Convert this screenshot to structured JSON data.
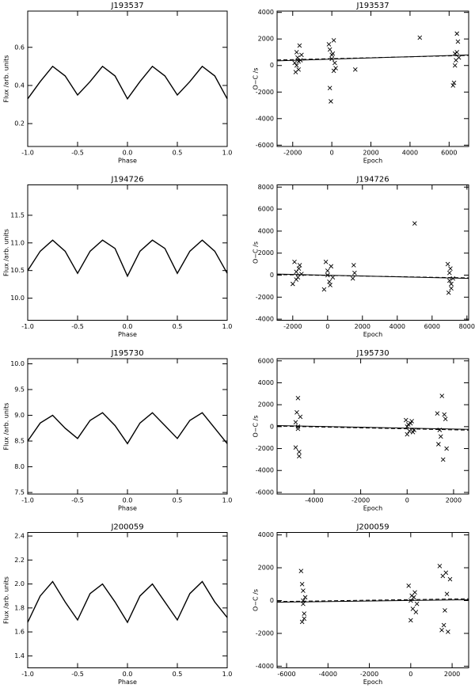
{
  "chart_data": [
    {
      "type": "line",
      "title": "J193537",
      "x_label": "Phase",
      "y_label": "Flux /arb. units",
      "x": [
        -1,
        -0.875,
        -0.75,
        -0.625,
        -0.5,
        -0.375,
        -0.25,
        -0.125,
        0,
        0.125,
        0.25,
        0.375,
        0.5,
        0.625,
        0.75,
        0.875,
        1
      ],
      "values": [
        0.33,
        0.42,
        0.5,
        0.45,
        0.35,
        0.42,
        0.5,
        0.45,
        0.33,
        0.42,
        0.5,
        0.45,
        0.35,
        0.42,
        0.5,
        0.45,
        0.33
      ],
      "xlim": [
        -1,
        1
      ],
      "ylim": [
        0.08,
        0.79
      ],
      "xticks": [
        {
          "value": -1,
          "label": "-1.0"
        },
        -0.5,
        {
          "value": 0,
          "label": "0.0"
        },
        0.5,
        {
          "value": 1,
          "label": "1.0"
        }
      ],
      "yticks": [
        0.2,
        0.4,
        0.6
      ],
      "color": "#000000"
    },
    {
      "type": "scatter",
      "title": "J193537",
      "x_label": "Epoch",
      "y_label": "O−C /s",
      "x": [
        -1900,
        -1850,
        -1800,
        -1750,
        -1700,
        -1650,
        -1600,
        -1550,
        -1800,
        -1700,
        -150,
        -100,
        -50,
        0,
        50,
        100,
        150,
        200,
        -100,
        100,
        0,
        1200,
        4500,
        6200,
        6250,
        6300,
        6350,
        6400,
        6450,
        6500,
        6300,
        6400
      ],
      "values": [
        200,
        -500,
        1000,
        600,
        -300,
        1500,
        400,
        800,
        0,
        300,
        1600,
        -1700,
        -2700,
        500,
        900,
        1900,
        200,
        -200,
        1200,
        -400,
        800,
        -300,
        2100,
        -1500,
        -1300,
        900,
        400,
        2400,
        1800,
        600,
        0,
        1000
      ],
      "fits": [
        {
          "x": [
            -2800,
            7000
          ],
          "values": [
            350,
            800
          ],
          "dashed": false
        },
        {
          "x": [
            -2800,
            7000
          ],
          "values": [
            420,
            760
          ],
          "dashed": true
        }
      ],
      "xlim": [
        -2800,
        7000
      ],
      "ylim": [
        -6100,
        4100
      ],
      "xticks": [
        -2000,
        0,
        2000,
        4000,
        6000
      ],
      "yticks": [
        -6000,
        -4000,
        -2000,
        0,
        2000,
        4000
      ],
      "color": "#000000"
    },
    {
      "type": "line",
      "title": "J194726",
      "x_label": "Phase",
      "y_label": "Flux /arb. units",
      "x": [
        -1,
        -0.875,
        -0.75,
        -0.625,
        -0.5,
        -0.375,
        -0.25,
        -0.125,
        0,
        0.125,
        0.25,
        0.375,
        0.5,
        0.625,
        0.75,
        0.875,
        1
      ],
      "values": [
        10.5,
        10.85,
        11.05,
        10.85,
        10.45,
        10.85,
        11.05,
        10.9,
        10.4,
        10.85,
        11.05,
        10.9,
        10.45,
        10.85,
        11.05,
        10.85,
        10.45
      ],
      "xlim": [
        -1,
        1
      ],
      "ylim": [
        9.6,
        12.05
      ],
      "xticks": [
        {
          "value": -1,
          "label": "-1.0"
        },
        -0.5,
        {
          "value": 0,
          "label": "0.0"
        },
        0.5,
        {
          "value": 1,
          "label": "1.0"
        }
      ],
      "yticks": [
        {
          "value": 10,
          "label": "10.0"
        },
        10.5,
        {
          "value": 11,
          "label": "11.0"
        },
        11.5
      ],
      "color": "#000000"
    },
    {
      "type": "scatter",
      "title": "J194726",
      "x_label": "Epoch",
      "y_label": "O−C /s",
      "x": [
        -2000,
        -1900,
        -1800,
        -1700,
        -1600,
        -1500,
        -1800,
        -1650,
        -200,
        -100,
        0,
        100,
        200,
        300,
        0,
        150,
        1500,
        1450,
        1550,
        5000,
        6900,
        6950,
        7000,
        7050,
        7100,
        7200,
        7000,
        7100
      ],
      "values": [
        -800,
        1200,
        300,
        -200,
        900,
        100,
        -400,
        600,
        -1300,
        1200,
        400,
        -600,
        800,
        -200,
        0,
        -900,
        900,
        -300,
        200,
        4700,
        1000,
        -1600,
        -500,
        600,
        -1200,
        -300,
        200,
        -800
      ],
      "fits": [
        {
          "x": [
            -2900,
            8100
          ],
          "values": [
            100,
            -300
          ],
          "dashed": false
        },
        {
          "x": [
            -2900,
            8100
          ],
          "values": [
            50,
            -250
          ],
          "dashed": true
        }
      ],
      "xlim": [
        -2900,
        8100
      ],
      "ylim": [
        -4100,
        8200
      ],
      "xticks": [
        -2000,
        0,
        2000,
        4000,
        6000,
        8000
      ],
      "yticks": [
        -4000,
        -2000,
        0,
        2000,
        4000,
        6000,
        8000
      ],
      "color": "#000000"
    },
    {
      "type": "line",
      "title": "J195730",
      "x_label": "Phase",
      "y_label": "Flux /arb. units",
      "x": [
        -1,
        -0.875,
        -0.75,
        -0.625,
        -0.5,
        -0.375,
        -0.25,
        -0.125,
        0,
        0.125,
        0.25,
        0.375,
        0.5,
        0.625,
        0.75,
        0.875,
        1
      ],
      "values": [
        8.5,
        8.85,
        9.0,
        8.75,
        8.55,
        8.9,
        9.05,
        8.8,
        8.45,
        8.85,
        9.05,
        8.8,
        8.55,
        8.9,
        9.05,
        8.75,
        8.45
      ],
      "xlim": [
        -1,
        1
      ],
      "ylim": [
        7.47,
        10.1
      ],
      "xticks": [
        {
          "value": -1,
          "label": "-1.0"
        },
        -0.5,
        {
          "value": 0,
          "label": "0.0"
        },
        0.5,
        {
          "value": 1,
          "label": "1.0"
        }
      ],
      "yticks": [
        7.5,
        {
          "value": 8,
          "label": "8.0"
        },
        8.5,
        {
          "value": 9,
          "label": "9.0"
        },
        9.5,
        {
          "value": 10,
          "label": "10.0"
        }
      ],
      "color": "#000000"
    },
    {
      "type": "scatter",
      "title": "J195730",
      "x_label": "Epoch",
      "y_label": "O−C /s",
      "x": [
        -4800,
        -4750,
        -4700,
        -4650,
        -4600,
        -4700,
        -4800,
        -4650,
        -4700,
        -50,
        0,
        50,
        100,
        200,
        300,
        0,
        150,
        250,
        1300,
        1350,
        1400,
        1500,
        1550,
        1600,
        1700,
        1450,
        1650
      ],
      "values": [
        -1900,
        1300,
        2600,
        -2700,
        900,
        -200,
        400,
        -2300,
        0,
        600,
        -700,
        200,
        -400,
        500,
        -300,
        0,
        300,
        -500,
        1200,
        -1600,
        -300,
        2800,
        -3000,
        1100,
        -2000,
        -900,
        700
      ],
      "fits": [
        {
          "x": [
            -5600,
            2650
          ],
          "values": [
            100,
            -250
          ],
          "dashed": false
        },
        {
          "x": [
            -5600,
            2650
          ],
          "values": [
            50,
            -320
          ],
          "dashed": true
        }
      ],
      "xlim": [
        -5600,
        2650
      ],
      "ylim": [
        -6150,
        6200
      ],
      "xticks": [
        -4000,
        -2000,
        0,
        2000
      ],
      "yticks": [
        -6000,
        -4000,
        -2000,
        0,
        2000,
        4000,
        6000
      ],
      "color": "#000000"
    },
    {
      "type": "line",
      "title": "J200059",
      "x_label": "Phase",
      "y_label": "Flux /arb. units",
      "x": [
        -1,
        -0.875,
        -0.75,
        -0.625,
        -0.5,
        -0.375,
        -0.25,
        -0.125,
        0,
        0.125,
        0.25,
        0.375,
        0.5,
        0.625,
        0.75,
        0.875,
        1
      ],
      "values": [
        1.68,
        1.9,
        2.02,
        1.85,
        1.7,
        1.92,
        2.0,
        1.85,
        1.68,
        1.9,
        2.0,
        1.85,
        1.7,
        1.92,
        2.02,
        1.85,
        1.72
      ],
      "xlim": [
        -1,
        1
      ],
      "ylim": [
        1.3,
        2.43
      ],
      "xticks": [
        {
          "value": -1,
          "label": "-1.0"
        },
        -0.5,
        {
          "value": 0,
          "label": "0.0"
        },
        0.5,
        {
          "value": 1,
          "label": "1.0"
        }
      ],
      "yticks": [
        1.4,
        1.6,
        1.8,
        {
          "value": 2,
          "label": "2.0"
        },
        2.2,
        2.4
      ],
      "color": "#000000"
    },
    {
      "type": "scatter",
      "title": "J200059",
      "x_label": "Epoch",
      "y_label": "O−C /s",
      "x": [
        -5300,
        -5250,
        -5200,
        -5150,
        -5100,
        -5200,
        -5250,
        -5150,
        -5200,
        -100,
        0,
        50,
        100,
        200,
        300,
        0,
        250,
        150,
        1400,
        1500,
        1550,
        1600,
        1700,
        1800,
        1900,
        1650,
        1750
      ],
      "values": [
        1800,
        -1300,
        600,
        -800,
        200,
        -200,
        1000,
        -1100,
        0,
        900,
        -1200,
        300,
        -500,
        500,
        -200,
        0,
        -700,
        200,
        2100,
        -1800,
        1500,
        -1500,
        1700,
        -1900,
        1300,
        -600,
        400
      ],
      "fits": [
        {
          "x": [
            -6460,
            2800
          ],
          "values": [
            -100,
            50
          ],
          "dashed": false
        },
        {
          "x": [
            -6460,
            2800
          ],
          "values": [
            -60,
            110
          ],
          "dashed": true
        }
      ],
      "xlim": [
        -6460,
        2800
      ],
      "ylim": [
        -4100,
        4150
      ],
      "xticks": [
        -6000,
        -4000,
        -2000,
        0,
        2000
      ],
      "yticks": [
        -4000,
        -2000,
        0,
        2000,
        4000
      ],
      "color": "#000000"
    }
  ]
}
